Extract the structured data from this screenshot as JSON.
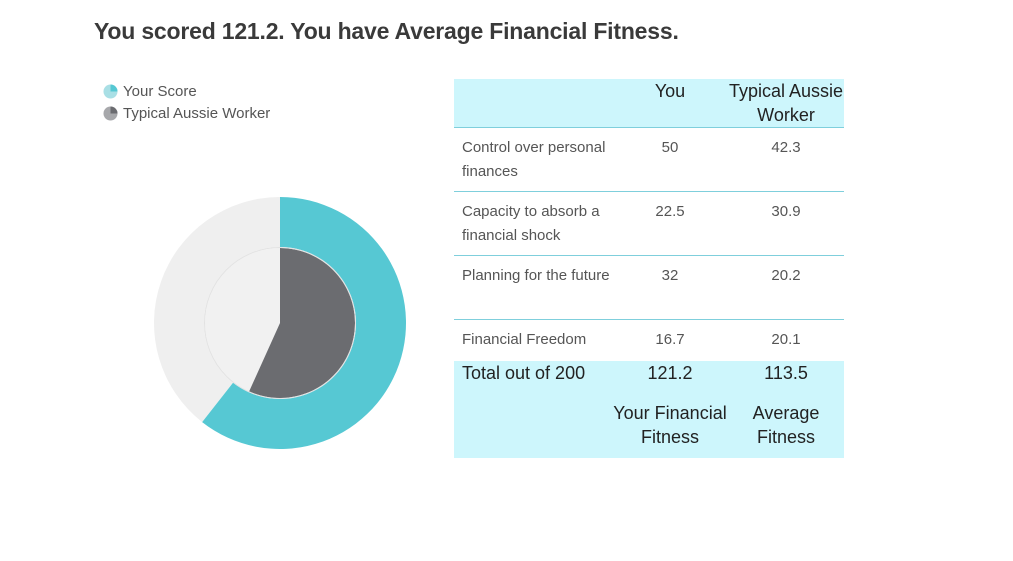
{
  "title": "You scored 121.2. You have Average Financial Fitness.",
  "legend": [
    "Your Score",
    "Typical Aussie Worker"
  ],
  "colors": {
    "your_score": "#56c8d3",
    "your_score_track": "#efefef",
    "typical_worker": "#6b6c70",
    "typical_worker_track": "#f1f1f1",
    "table_highlight": "#cdf6fc"
  },
  "table": {
    "headers": [
      "",
      "You",
      "Typical Aussie Worker"
    ],
    "rows": [
      {
        "label": "Control over personal finances",
        "you": "50",
        "typical": "42.3"
      },
      {
        "label": "Capacity to absorb a financial shock",
        "you": "22.5",
        "typical": "30.9"
      },
      {
        "label": "Planning for the future",
        "you": "32",
        "typical": "20.2"
      },
      {
        "label": "Financial Freedom",
        "you": "16.7",
        "typical": "20.1"
      }
    ],
    "total": {
      "label": "Total out of 200",
      "you": "121.2",
      "typical": "113.5",
      "you_rating": "Your Financial Fitness",
      "typical_rating": "Average Fitness"
    }
  },
  "chart_data": {
    "type": "pie",
    "max": 200,
    "series": [
      {
        "name": "Your Score",
        "value": 121.2,
        "ring": "outer"
      },
      {
        "name": "Typical Aussie Worker",
        "value": 113.5,
        "ring": "inner"
      }
    ]
  }
}
